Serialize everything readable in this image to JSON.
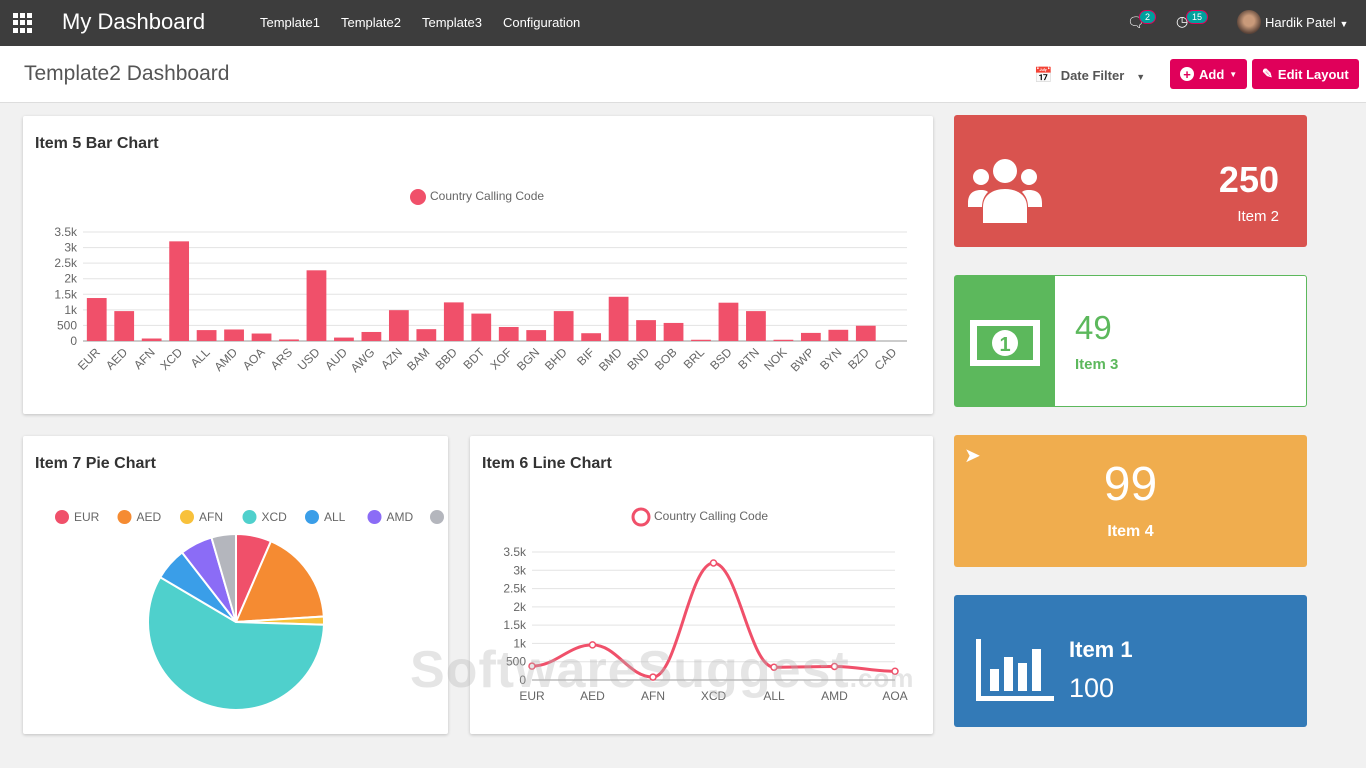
{
  "topbar": {
    "brand": "My Dashboard",
    "menu": [
      "Template1",
      "Template2",
      "Template3",
      "Configuration"
    ],
    "messages_count": "2",
    "activities_count": "15",
    "user": "Hardik Patel"
  },
  "subheader": {
    "title": "Template2 Dashboard",
    "date_filter": "Date Filter",
    "add": "Add",
    "edit_layout": "Edit Layout"
  },
  "bar_card": {
    "title": "Item 5 Bar Chart"
  },
  "pie_card": {
    "title": "Item 7 Pie Chart"
  },
  "line_card": {
    "title": "Item 6 Line Chart"
  },
  "kpis": [
    {
      "value": "250",
      "label": "Item 2",
      "color": "#d9534f",
      "icon": "users-icon"
    },
    {
      "value": "49",
      "label": "Item 3",
      "color": "#5cb85c",
      "icon": "money-icon"
    },
    {
      "value": "99",
      "label": "Item 4",
      "color": "#f0ad4e",
      "icon": "paper-plane-icon"
    },
    {
      "value": "100",
      "label": "Item 1",
      "color": "#337ab7",
      "icon": "bar-chart-icon"
    }
  ],
  "watermark": "SoftwareSuggest",
  "watermark_suffix": ".com",
  "chart_data": [
    {
      "type": "bar",
      "title": "Item 5 Bar Chart",
      "legend": "Country Calling Code",
      "legend_position": "top",
      "color": "#f0506a",
      "ylim": [
        0,
        3500
      ],
      "yticks": [
        "0",
        "500",
        "1k",
        "1.5k",
        "2k",
        "2.5k",
        "3k",
        "3.5k"
      ],
      "categories": [
        "EUR",
        "AED",
        "AFN",
        "XCD",
        "ALL",
        "AMD",
        "AOA",
        "ARS",
        "USD",
        "AUD",
        "AWG",
        "AZN",
        "BAM",
        "BBD",
        "BDT",
        "XOF",
        "BGN",
        "BHD",
        "BIF",
        "BMD",
        "BND",
        "BOB",
        "BRL",
        "BSD",
        "BTN",
        "NOK",
        "BWP",
        "BYN",
        "BZD",
        "CAD"
      ],
      "values": [
        1380,
        960,
        80,
        3200,
        350,
        370,
        240,
        50,
        2270,
        110,
        290,
        990,
        380,
        1240,
        880,
        450,
        350,
        960,
        250,
        1420,
        670,
        580,
        40,
        1230,
        960,
        40,
        260,
        360,
        490,
        0
      ]
    },
    {
      "type": "pie",
      "title": "Item 7 Pie Chart",
      "legend_position": "top",
      "categories": [
        "EUR",
        "AED",
        "AFN",
        "XCD",
        "ALL",
        "AMD",
        "AOA"
      ],
      "values": [
        6.5,
        17.5,
        1.5,
        58,
        6,
        6,
        4.5
      ],
      "colors": [
        "#f0506a",
        "#f58b32",
        "#f8c13b",
        "#4fd0cc",
        "#3a9ee8",
        "#8b6cf6",
        "#b4b6bd"
      ]
    },
    {
      "type": "line",
      "title": "Item 6 Line Chart",
      "legend": "Country Calling Code",
      "legend_position": "top",
      "color": "#f0506a",
      "ylim": [
        0,
        3500
      ],
      "yticks": [
        "0",
        "500",
        "1k",
        "1.5k",
        "2k",
        "2.5k",
        "3k",
        "3.5k"
      ],
      "categories": [
        "EUR",
        "AED",
        "AFN",
        "XCD",
        "ALL",
        "AMD",
        "AOA"
      ],
      "values": [
        380,
        960,
        80,
        3200,
        350,
        370,
        240
      ]
    }
  ]
}
